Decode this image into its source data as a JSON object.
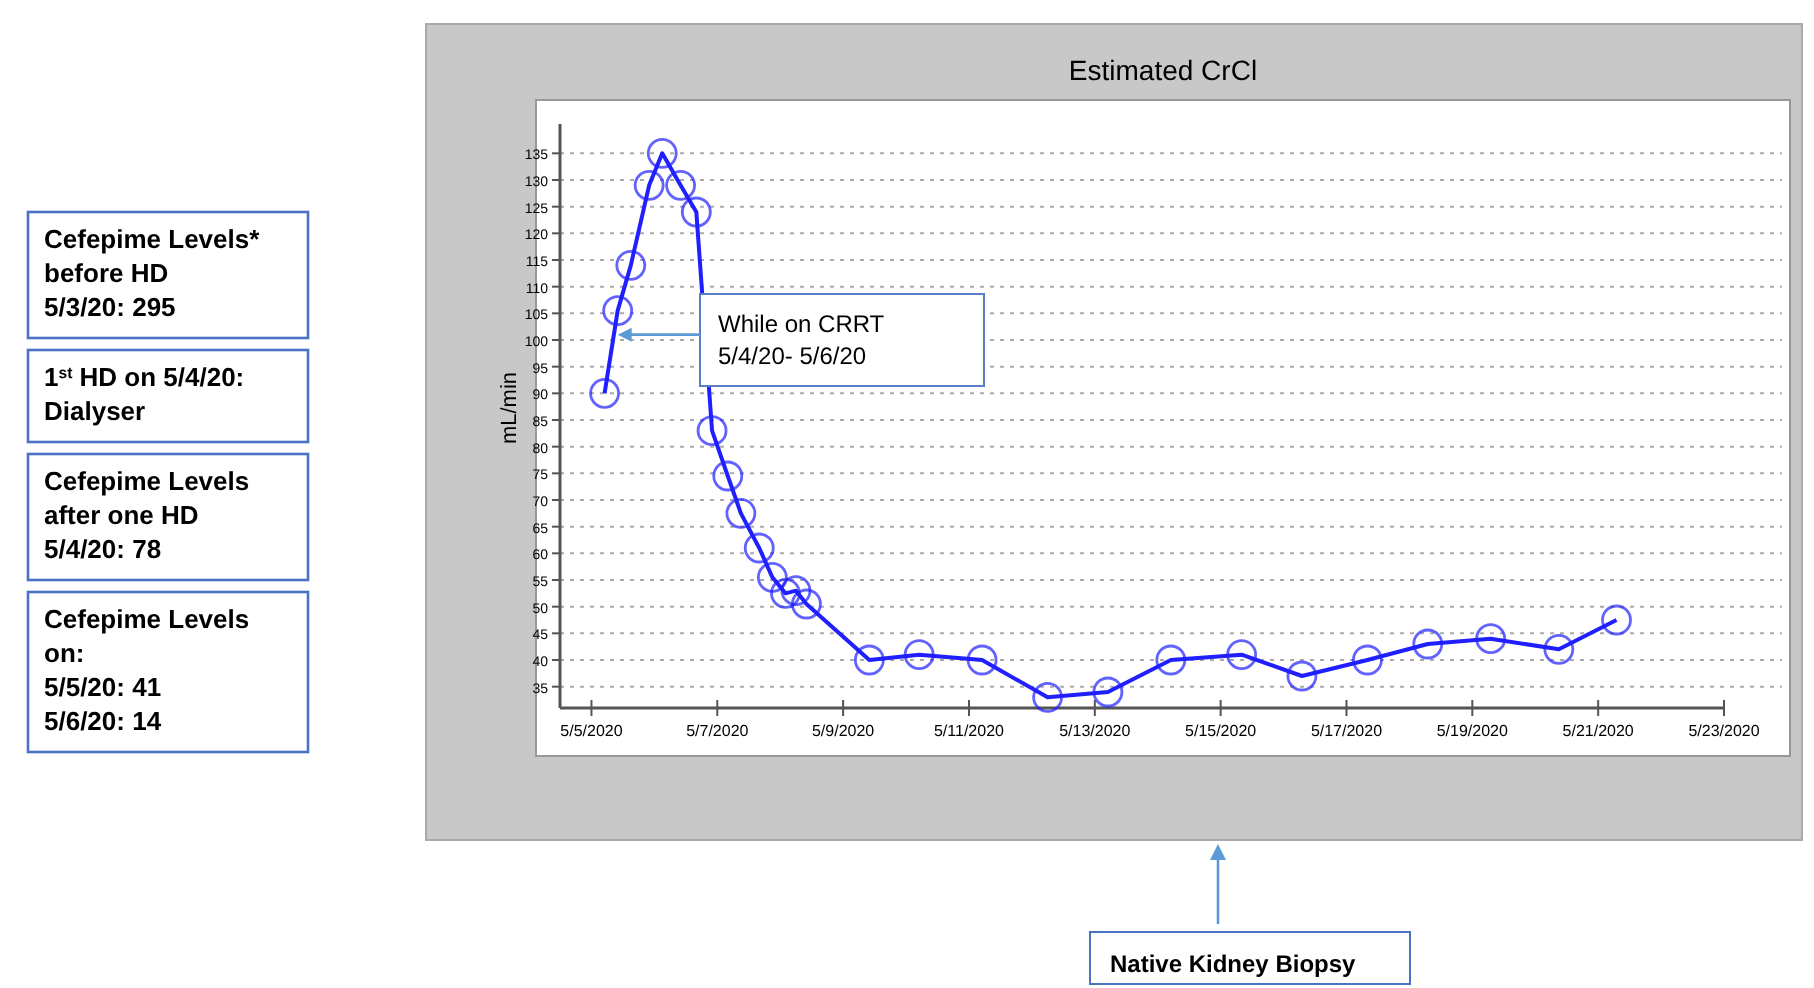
{
  "chart_data": {
    "type": "line",
    "title": "Estimated CrCl",
    "ylabel": "mL/min",
    "x": [
      "2020-05-05T05:00",
      "2020-05-05T10:00",
      "2020-05-05T15:00",
      "2020-05-05T22:00",
      "2020-05-06T03:00",
      "2020-05-06T10:00",
      "2020-05-06T16:00",
      "2020-05-06T22:00",
      "2020-05-07T04:00",
      "2020-05-07T09:00",
      "2020-05-07T16:00",
      "2020-05-07T21:00",
      "2020-05-08T02:00",
      "2020-05-08T06:00",
      "2020-05-08T10:00",
      "2020-05-09T10:00",
      "2020-05-10T05:00",
      "2020-05-11T05:00",
      "2020-05-12T06:00",
      "2020-05-13T05:00",
      "2020-05-14T05:00",
      "2020-05-15T08:00",
      "2020-05-16T07:00",
      "2020-05-17T08:00",
      "2020-05-18T07:00",
      "2020-05-19T07:00",
      "2020-05-20T09:00",
      "2020-05-21T07:00"
    ],
    "series": [
      {
        "color": "#1f1fff",
        "values": [
          90,
          105.5,
          114,
          129,
          135,
          129,
          124,
          83,
          74.5,
          67.5,
          61,
          55.5,
          52.5,
          53,
          50.5,
          40,
          41,
          40,
          33,
          34,
          40,
          41,
          37,
          40,
          43,
          44,
          42,
          47.5
        ]
      }
    ],
    "xlim": [
      "2020-05-04T12:00",
      "2020-05-23T00:00"
    ],
    "xticks": [
      {
        "value": "2020-05-05",
        "label": "5/5/2020"
      },
      {
        "value": "2020-05-07",
        "label": "5/7/2020"
      },
      {
        "value": "2020-05-09",
        "label": "5/9/2020"
      },
      {
        "value": "2020-05-11",
        "label": "5/11/2020"
      },
      {
        "value": "2020-05-13",
        "label": "5/13/2020"
      },
      {
        "value": "2020-05-15",
        "label": "5/15/2020"
      },
      {
        "value": "2020-05-17",
        "label": "5/17/2020"
      },
      {
        "value": "2020-05-19",
        "label": "5/19/2020"
      },
      {
        "value": "2020-05-21",
        "label": "5/21/2020"
      },
      {
        "value": "2020-05-23",
        "label": "5/23/2020"
      }
    ],
    "ylim": [
      31,
      145
    ],
    "yticks": [
      35,
      40,
      45,
      50,
      55,
      60,
      65,
      70,
      75,
      80,
      85,
      90,
      95,
      100,
      105,
      110,
      115,
      120,
      125,
      130,
      135
    ],
    "grid": "y",
    "marker": "circle",
    "line_style": "solid",
    "annotations": [
      "Cefepime Levels*\nbefore HD\n5/3/20: 295",
      "1$^{st}$ HD on 5/4/20:\nDialyser",
      "Cefepime Levels\nafter one HD\n5/4/20: 78",
      "Cefepime Levels\non:\n5/5/20: 41\n5/6/20: 14",
      {
        "text": "While on CRRT\n5/4/20- 5/6/20",
        "x": "2020-05-05T10:00",
        "y": 101
      },
      "Native Kidney Biopsy"
    ]
  }
}
